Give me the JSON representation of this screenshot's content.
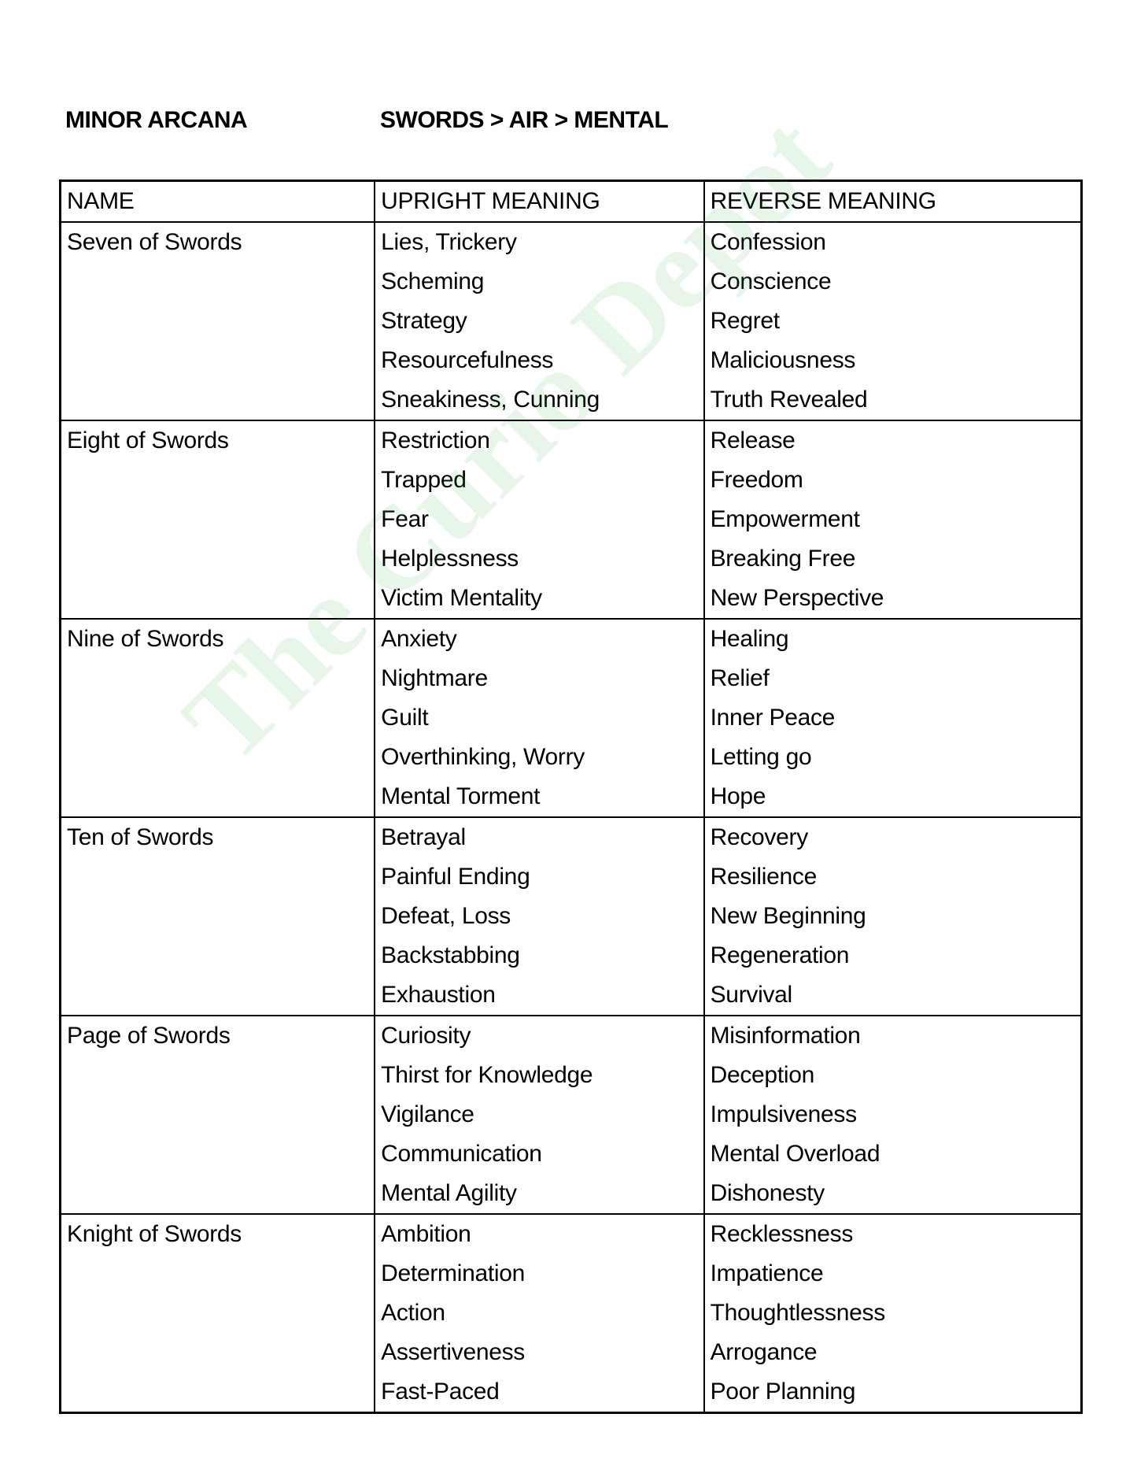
{
  "header": {
    "left": "MINOR ARCANA",
    "right": "SWORDS > AIR > MENTAL"
  },
  "columns": [
    "NAME",
    "UPRIGHT MEANING",
    "REVERSE MEANING"
  ],
  "rows": [
    {
      "name": "Seven of Swords",
      "upright": [
        "Lies, Trickery",
        "Scheming",
        "Strategy",
        "Resourcefulness",
        "Sneakiness, Cunning"
      ],
      "reverse": [
        "Confession",
        "Conscience",
        "Regret",
        "Maliciousness",
        "Truth Revealed"
      ]
    },
    {
      "name": "Eight of Swords",
      "upright": [
        "Restriction",
        "Trapped",
        "Fear",
        "Helplessness",
        "Victim Mentality"
      ],
      "reverse": [
        "Release",
        "Freedom",
        "Empowerment",
        "Breaking Free",
        "New Perspective"
      ]
    },
    {
      "name": "Nine of Swords",
      "upright": [
        "Anxiety",
        "Nightmare",
        "Guilt",
        "Overthinking, Worry",
        "Mental Torment"
      ],
      "reverse": [
        "Healing",
        "Relief",
        "Inner Peace",
        "Letting go",
        "Hope"
      ]
    },
    {
      "name": "Ten of Swords",
      "upright": [
        "Betrayal",
        "Painful Ending",
        "Defeat, Loss",
        "Backstabbing",
        "Exhaustion"
      ],
      "reverse": [
        "Recovery",
        "Resilience",
        "New Beginning",
        "Regeneration",
        "Survival"
      ]
    },
    {
      "name": "Page of Swords",
      "upright": [
        "Curiosity",
        "Thirst for Knowledge",
        "Vigilance",
        "Communication",
        "Mental Agility"
      ],
      "reverse": [
        "Misinformation",
        "Deception",
        "Impulsiveness",
        "Mental Overload",
        "Dishonesty"
      ]
    },
    {
      "name": "Knight of Swords",
      "upright": [
        "Ambition",
        "Determination",
        "Action",
        "Assertiveness",
        "Fast-Paced"
      ],
      "reverse": [
        "Recklessness",
        "Impatience",
        "Thoughtlessness",
        "Arrogance",
        "Poor Planning"
      ]
    }
  ],
  "watermark": {
    "text": "The Curio Depot",
    "color": "#4caf50"
  }
}
